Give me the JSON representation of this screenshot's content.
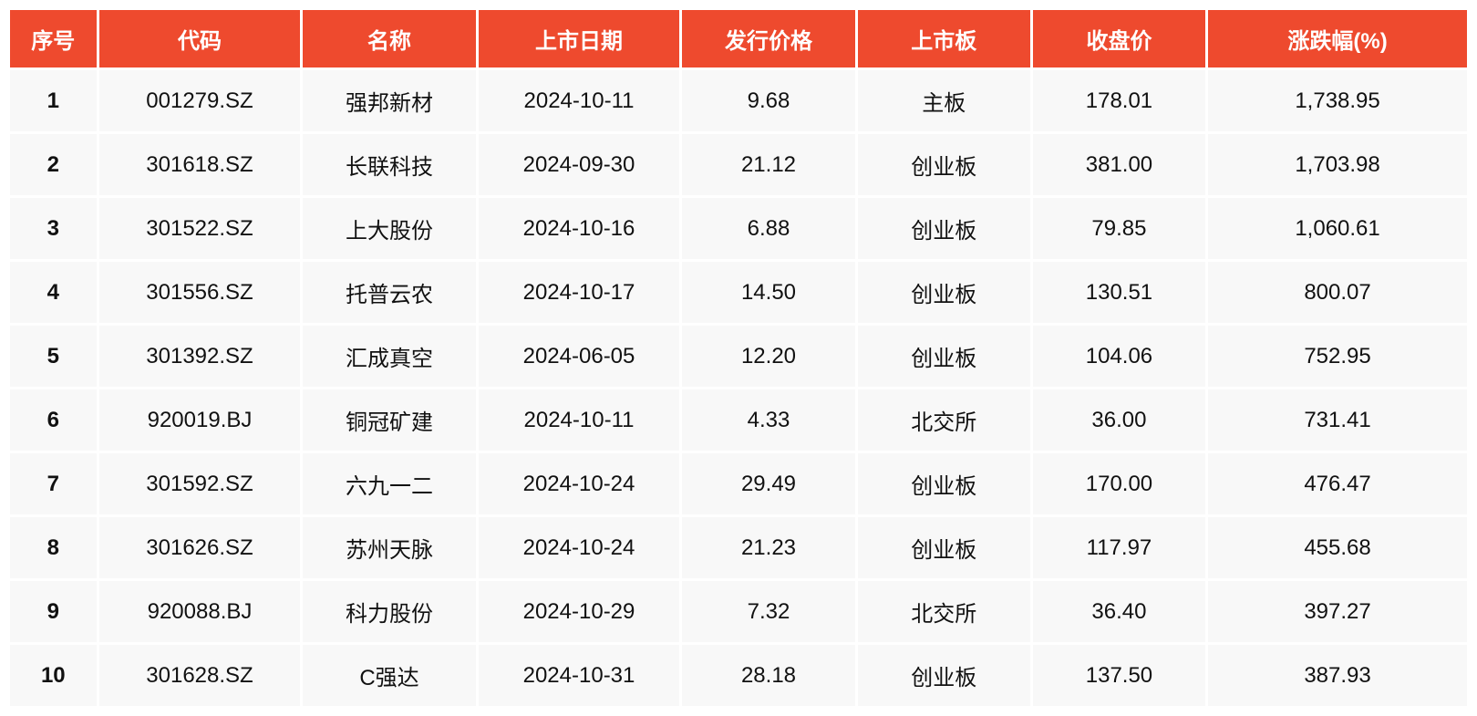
{
  "table": {
    "header_bg": "#ee4a2e",
    "header_fg": "#ffffff",
    "cell_bg": "#f8f8f8",
    "cell_fg": "#111111",
    "columns": [
      {
        "key": "seq",
        "label": "序号",
        "class": "col-seq"
      },
      {
        "key": "code",
        "label": "代码",
        "class": "col-code"
      },
      {
        "key": "name",
        "label": "名称",
        "class": "col-name"
      },
      {
        "key": "list_date",
        "label": "上市日期",
        "class": "col-date"
      },
      {
        "key": "issue_px",
        "label": "发行价格",
        "class": "col-iss"
      },
      {
        "key": "board",
        "label": "上市板",
        "class": "col-brd"
      },
      {
        "key": "close_px",
        "label": "收盘价",
        "class": "col-cls"
      },
      {
        "key": "pct_chg",
        "label": "涨跌幅(%)",
        "class": "col-chg"
      }
    ],
    "rows": [
      {
        "seq": "1",
        "code": "001279.SZ",
        "name": "强邦新材",
        "list_date": "2024-10-11",
        "issue_px": "9.68",
        "board": "主板",
        "close_px": "178.01",
        "pct_chg": "1,738.95"
      },
      {
        "seq": "2",
        "code": "301618.SZ",
        "name": "长联科技",
        "list_date": "2024-09-30",
        "issue_px": "21.12",
        "board": "创业板",
        "close_px": "381.00",
        "pct_chg": "1,703.98"
      },
      {
        "seq": "3",
        "code": "301522.SZ",
        "name": "上大股份",
        "list_date": "2024-10-16",
        "issue_px": "6.88",
        "board": "创业板",
        "close_px": "79.85",
        "pct_chg": "1,060.61"
      },
      {
        "seq": "4",
        "code": "301556.SZ",
        "name": "托普云农",
        "list_date": "2024-10-17",
        "issue_px": "14.50",
        "board": "创业板",
        "close_px": "130.51",
        "pct_chg": "800.07"
      },
      {
        "seq": "5",
        "code": "301392.SZ",
        "name": "汇成真空",
        "list_date": "2024-06-05",
        "issue_px": "12.20",
        "board": "创业板",
        "close_px": "104.06",
        "pct_chg": "752.95"
      },
      {
        "seq": "6",
        "code": "920019.BJ",
        "name": "铜冠矿建",
        "list_date": "2024-10-11",
        "issue_px": "4.33",
        "board": "北交所",
        "close_px": "36.00",
        "pct_chg": "731.41"
      },
      {
        "seq": "7",
        "code": "301592.SZ",
        "name": "六九一二",
        "list_date": "2024-10-24",
        "issue_px": "29.49",
        "board": "创业板",
        "close_px": "170.00",
        "pct_chg": "476.47"
      },
      {
        "seq": "8",
        "code": "301626.SZ",
        "name": "苏州天脉",
        "list_date": "2024-10-24",
        "issue_px": "21.23",
        "board": "创业板",
        "close_px": "117.97",
        "pct_chg": "455.68"
      },
      {
        "seq": "9",
        "code": "920088.BJ",
        "name": "科力股份",
        "list_date": "2024-10-29",
        "issue_px": "7.32",
        "board": "北交所",
        "close_px": "36.40",
        "pct_chg": "397.27"
      },
      {
        "seq": "10",
        "code": "301628.SZ",
        "name": "C强达",
        "list_date": "2024-10-31",
        "issue_px": "28.18",
        "board": "创业板",
        "close_px": "137.50",
        "pct_chg": "387.93"
      }
    ]
  }
}
